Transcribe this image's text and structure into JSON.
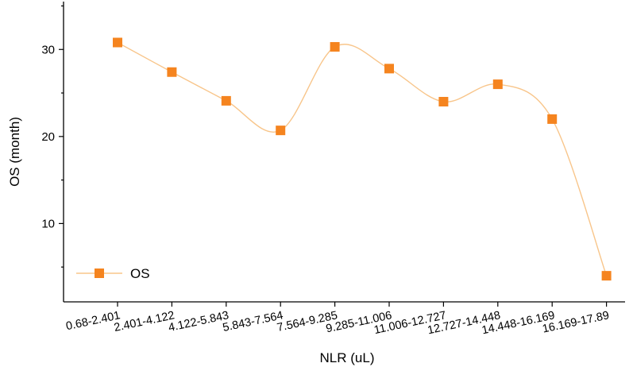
{
  "chart_data": {
    "type": "line",
    "title": "",
    "xlabel": "NLR (uL)",
    "ylabel": "OS (month)",
    "categories": [
      "0.68-2.401",
      "2.401-4.122",
      "4.122-5.843",
      "5.843-7.564",
      "7.564-9.285",
      "9.285-11.006",
      "11.006-12.727",
      "12.727-14.448",
      "14.448-16.169",
      "16.169-17.89"
    ],
    "series": [
      {
        "name": "OS",
        "values": [
          30.8,
          27.4,
          24.1,
          20.7,
          30.3,
          27.8,
          24.0,
          26.0,
          22.0,
          4.0
        ],
        "color": "#f5841f",
        "line_color": "#f8c58a"
      }
    ],
    "ylim": [
      1,
      35.5
    ],
    "yticks": [
      10,
      20,
      30
    ],
    "smooth": true,
    "grid": false,
    "legend": "bottom-left"
  }
}
